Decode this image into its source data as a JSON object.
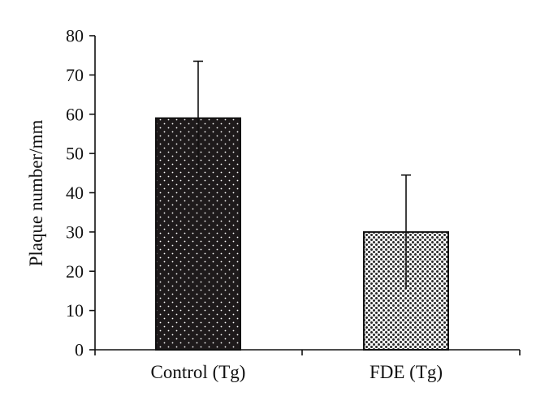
{
  "chart_data": {
    "type": "bar",
    "title": "",
    "xlabel": "",
    "ylabel": "Plaque number/mm",
    "categories": [
      "Control (Tg)",
      "FDE (Tg)"
    ],
    "values": [
      59,
      30
    ],
    "error_bars": [
      14.5,
      14.5
    ],
    "ylim": [
      0,
      80
    ],
    "yticks": [
      0,
      10,
      20,
      30,
      40,
      50,
      60,
      70,
      80
    ],
    "grid": false,
    "legend": "none",
    "bar_styles": [
      {
        "pattern": "dark-dotted",
        "fill": "#1e1a1b",
        "dot": "#ffffff"
      },
      {
        "pattern": "light-crosshatch",
        "fill": "#ffffff",
        "dot": "#2a2a2a"
      }
    ]
  }
}
